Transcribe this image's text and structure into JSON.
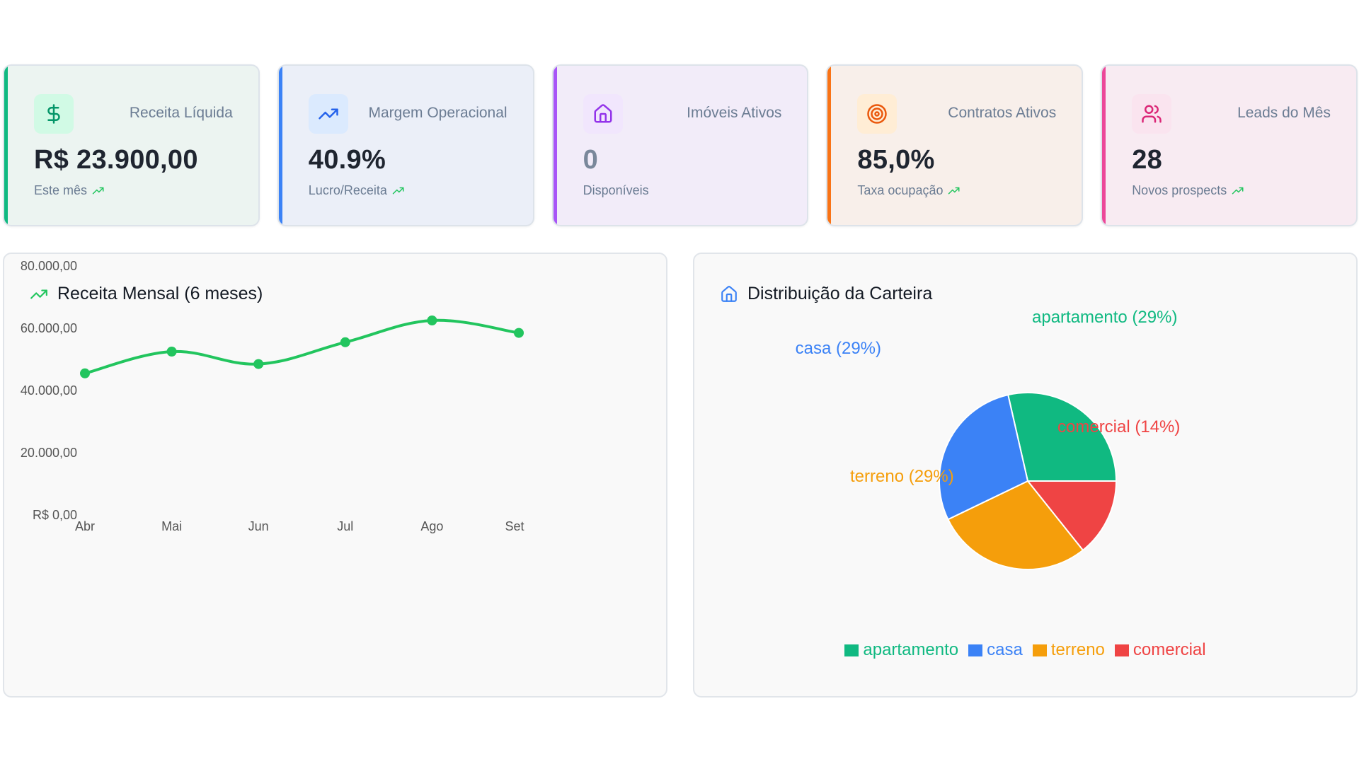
{
  "kpis": [
    {
      "title": "Receita Líquida",
      "value": "R$ 23.900,00",
      "subtitle": "Este mês",
      "icon": "dollar-icon",
      "trend_icon": "trending-up-icon",
      "accent": "#10b981",
      "bg": "#ecf4f1",
      "icon_bg": "#d1fae5",
      "icon_color": "#059669",
      "value_color": "#1f2530"
    },
    {
      "title": "Margem Operacional",
      "value": "40.9%",
      "subtitle": "Lucro/Receita",
      "icon": "trending-up-icon",
      "trend_icon": "trending-up-icon",
      "accent": "#3b82f6",
      "bg": "#ebeff8",
      "icon_bg": "#dbeafe",
      "icon_color": "#2563eb",
      "value_color": "#1f2530"
    },
    {
      "title": "Imóveis Ativos",
      "value": "0",
      "subtitle": "Disponíveis",
      "icon": "home-icon",
      "trend_icon": "",
      "accent": "#a855f7",
      "bg": "#f2ecf9",
      "icon_bg": "#f1e6fd",
      "icon_color": "#9333ea",
      "value_color": "#7a889b"
    },
    {
      "title": "Contratos Ativos",
      "value": "85,0%",
      "subtitle": "Taxa ocupação",
      "icon": "target-icon",
      "trend_icon": "trending-up-icon",
      "accent": "#f97316",
      "bg": "#f8efea",
      "icon_bg": "#ffedd5",
      "icon_color": "#ea580c",
      "value_color": "#1f2530"
    },
    {
      "title": "Leads do Mês",
      "value": "28",
      "subtitle": "Novos prospects",
      "icon": "users-icon",
      "trend_icon": "trending-up-icon",
      "accent": "#ec4899",
      "bg": "#f8ebf2",
      "icon_bg": "#fae4ef",
      "icon_color": "#db2777",
      "value_color": "#1f2530"
    }
  ],
  "revenue_panel": {
    "title": "Receita Mensal (6 meses)",
    "icon": "trending-up-icon",
    "icon_color": "#22c55e"
  },
  "portfolio_panel": {
    "title": "Distribuição da Carteira",
    "icon": "home-icon",
    "icon_color": "#3b82f6"
  },
  "trend_color": "#22c55e",
  "chart_data": [
    {
      "type": "line",
      "title": "Receita Mensal (6 meses)",
      "xlabel": "",
      "ylabel": "",
      "categories": [
        "Abr",
        "Mai",
        "Jun",
        "Jul",
        "Ago",
        "Set"
      ],
      "series": [
        {
          "name": "Receita",
          "values": [
            45500,
            52500,
            48500,
            55500,
            62500,
            58500
          ],
          "color": "#22c55e"
        }
      ],
      "ylim": [
        0,
        80000
      ],
      "yticks": [
        0,
        20000,
        40000,
        60000,
        80000
      ],
      "ytick_labels": [
        "R$ 0,00",
        "20.000,00",
        "40.000,00",
        "60.000,00",
        "80.000,00"
      ],
      "grid": false,
      "smooth": true
    },
    {
      "type": "pie",
      "title": "Distribuição da Carteira",
      "slices": [
        {
          "label": "apartamento",
          "value": 2,
          "percent_label": "apartamento (29%)",
          "color": "#10b981"
        },
        {
          "label": "comercial",
          "value": 1,
          "percent_label": "comercial (14%)",
          "color": "#ef4444"
        },
        {
          "label": "terreno",
          "value": 2,
          "percent_label": "terreno (29%)",
          "color": "#f59e0b"
        },
        {
          "label": "casa",
          "value": 2,
          "percent_label": "casa (29%)",
          "color": "#3b82f6"
        }
      ],
      "legend": [
        "apartamento",
        "casa",
        "terreno",
        "comercial"
      ],
      "legend_colors": [
        "#10b981",
        "#3b82f6",
        "#f59e0b",
        "#ef4444"
      ],
      "legend_position": "bottom"
    }
  ]
}
